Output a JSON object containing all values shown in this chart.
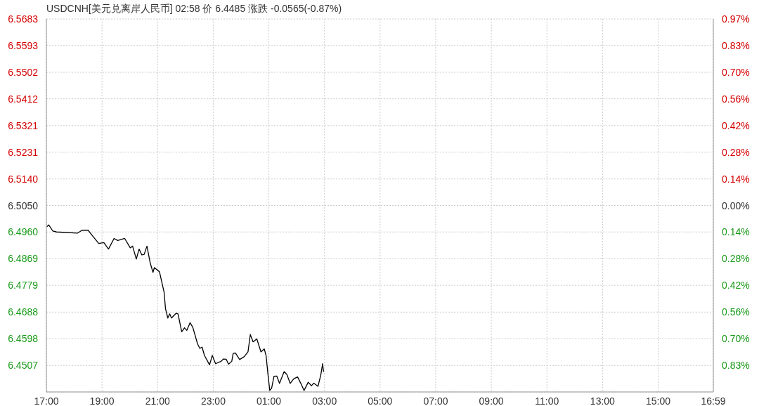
{
  "chart_data": {
    "type": "line",
    "title": "USDCNH[美元兑离岸人民币] 02:58 价 6.4485 涨跌 -0.0565(-0.87%)",
    "x": [
      "--01-06T17:01",
      "--01-06T17:05",
      "--01-06T17:14",
      "--01-06T17:22",
      "--01-06T18:07",
      "--01-06T18:17",
      "--01-06T18:30",
      "--01-06T18:40",
      "--01-06T18:53",
      "--01-06T19:04",
      "--01-06T19:14",
      "--01-06T19:26",
      "--01-06T19:34",
      "--01-06T19:49",
      "--01-06T20:01",
      "--01-06T20:06",
      "--01-06T20:14",
      "--01-06T20:20",
      "--01-06T20:26",
      "--01-06T20:31",
      "--01-06T20:37",
      "--01-06T20:44",
      "--01-06T20:50",
      "--01-06T20:53",
      "--01-06T21:04",
      "--01-06T21:14",
      "--01-06T21:17",
      "--01-06T21:22",
      "--01-06T21:26",
      "--01-06T21:30",
      "--01-06T21:40",
      "--01-06T21:44",
      "--01-06T21:52",
      "--01-06T21:58",
      "--01-06T22:03",
      "--01-06T22:10",
      "--01-06T22:16",
      "--01-06T22:26",
      "--01-06T22:31",
      "--01-06T22:36",
      "--01-06T22:41",
      "--01-06T22:52",
      "--01-06T22:58",
      "--01-06T23:05",
      "--01-06T23:17",
      "--01-06T23:22",
      "--01-06T23:28",
      "--01-06T23:33",
      "--01-06T23:40",
      "--01-06T23:43",
      "--01-06T23:48",
      "--01-06T23:57",
      "--01-07T00:07",
      "--01-07T00:15",
      "--01-07T00:20",
      "--01-07T00:26",
      "--01-07T00:34",
      "--01-07T00:43",
      "--01-07T00:50",
      "--01-07T00:54",
      "--01-07T00:58",
      "--01-07T01:02",
      "--01-07T01:06",
      "--01-07T01:11",
      "--01-07T01:17",
      "--01-07T01:23",
      "--01-07T01:33",
      "--01-07T01:39",
      "--01-07T01:46",
      "--01-07T01:54",
      "--01-07T02:02",
      "--01-07T02:09",
      "--01-07T02:16",
      "--01-07T02:25",
      "--01-07T02:32",
      "--01-07T02:37",
      "--01-07T02:46",
      "--01-07T02:52",
      "--01-07T02:56",
      "--01-07T02:58"
    ],
    "series": [
      {
        "color": "#000000",
        "values": [
          6.4978,
          6.4984,
          6.4963,
          6.496,
          6.4956,
          6.4966,
          6.4966,
          6.4946,
          6.4921,
          6.4924,
          6.4902,
          6.4938,
          6.4931,
          6.4938,
          6.4906,
          6.4912,
          6.4868,
          6.4902,
          6.4882,
          6.4884,
          6.4912,
          6.4855,
          6.4823,
          6.4839,
          6.4825,
          6.4755,
          6.47,
          6.4668,
          6.4682,
          6.4668,
          6.4684,
          6.4682,
          6.4621,
          6.4635,
          6.4626,
          6.4652,
          6.4636,
          6.4581,
          6.4565,
          6.4569,
          6.4541,
          6.4509,
          6.4541,
          6.4513,
          6.4521,
          6.4529,
          6.4528,
          6.4511,
          6.4521,
          6.4548,
          6.4549,
          6.4527,
          6.4537,
          6.4553,
          6.4612,
          6.4587,
          6.4597,
          6.4553,
          6.4563,
          6.4541,
          6.4478,
          6.4422,
          6.443,
          6.447,
          6.4471,
          6.4446,
          6.4486,
          6.4476,
          6.4446,
          6.4462,
          6.4468,
          6.4446,
          6.4422,
          6.445,
          6.4438,
          6.4447,
          6.4436,
          6.4474,
          6.4513,
          6.4485
        ]
      }
    ],
    "xlim": [
      "--01-06T17:00",
      "--01-07T16:59"
    ],
    "xticks": [
      {
        "value": "--01-06T17:00",
        "label": "17:00"
      },
      {
        "value": "--01-06T19:00",
        "label": "19:00"
      },
      {
        "value": "--01-06T21:00",
        "label": "21:00"
      },
      {
        "value": "--01-06T23:00",
        "label": "23:00"
      },
      {
        "value": "--01-07T01:00",
        "label": "01:00"
      },
      {
        "value": "--01-07T03:00",
        "label": "03:00"
      },
      {
        "value": "--01-07T05:00",
        "label": "05:00"
      },
      {
        "value": "--01-07T07:00",
        "label": "07:00"
      },
      {
        "value": "--01-07T09:00",
        "label": "09:00"
      },
      {
        "value": "--01-07T11:00",
        "label": "11:00"
      },
      {
        "value": "--01-07T13:00",
        "label": "13:00"
      },
      {
        "value": "--01-07T15:00",
        "label": "15:00"
      },
      {
        "value": "--01-07T16:59",
        "label": "16:59"
      }
    ],
    "ylim": [
      6.4417,
      6.5683
    ],
    "yticks": [
      6.5683,
      6.5593,
      6.5502,
      6.5412,
      6.5321,
      6.5231,
      {
        "value": 6.514,
        "label": "6.5140"
      },
      {
        "value": 6.505,
        "label": "6.5050"
      },
      {
        "value": 6.496,
        "label": "6.4960"
      },
      6.4869,
      6.4779,
      6.4688,
      6.4598,
      6.4507
    ],
    "y2lim": [
      -0.9731,
      0.9731
    ],
    "y2ticks": [
      {
        "value": 0.9731,
        "label": "0.97%"
      },
      {
        "value": 0.8347,
        "label": "0.83%"
      },
      {
        "value": 0.695,
        "label": "0.70%"
      },
      {
        "value": 0.5565,
        "label": "0.56%"
      },
      {
        "value": 0.4166,
        "label": "0.42%"
      },
      {
        "value": 0.2783,
        "label": "0.28%"
      },
      {
        "value": 0.1384,
        "label": "0.14%"
      },
      {
        "value": 0,
        "label": "0.00%"
      },
      {
        "value": -0.1384,
        "label": "0.14%"
      },
      {
        "value": -0.2783,
        "label": "0.28%"
      },
      {
        "value": -0.4166,
        "label": "0.42%"
      },
      {
        "value": -0.5565,
        "label": "0.56%"
      },
      {
        "value": -0.695,
        "label": "0.70%"
      },
      {
        "value": -0.8347,
        "label": "0.83%"
      }
    ],
    "grid": true,
    "marker": "none",
    "line_style": "solid"
  }
}
